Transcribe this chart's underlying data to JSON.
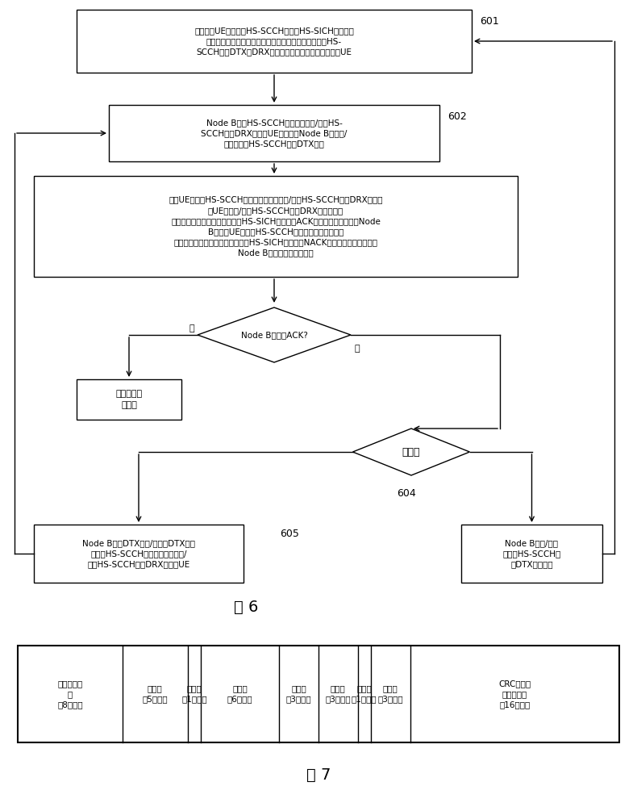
{
  "background_color": "#ffffff",
  "fig6_label": "图 6",
  "fig7_label": "图 7",
  "box601_text": "网络侧为UE初始分配HS-SCCH信道和HS-SICH信道资源\n用作资源分配控制信道和信息反馈控制信道，配置进行HS-\nSCCH信道DTX和DRX的周期，并通过高层信令发送给UE",
  "box601_label": "601",
  "box602_text": "Node B通过HS-SCCH信道发送进入/退出HS-\nSCCH信道DRX命令给UE，同时，Node B进入到/\n退出对应的HS-SCCH信道DTX状态",
  "box602_label": "602",
  "box603_text": "如果UE接收到HS-SCCH信道并正确收到进入/退出HS-SCCH信道DRX命令，\n则UE进入到/退出HS-SCCH信道DRX接收状态，\n并且在预定时间后，通过对应的HS-SICH信道发送ACK（确认）反馈信息给Node\nB；如果UE接收到HS-SCCH信道但收到的是错误的\n命令，则在预定时间后通过对应的HS-SICH信道发送NACK（非确认）反馈信息给\nNode B或者不反馈任何信息",
  "diamond_ack_text": "Node B接收到ACK?",
  "yes_label": "是",
  "no_label": "否",
  "box_end_text": "命令发送过\n程结束",
  "diamond2_text": "二选一",
  "diamond604_label": "604",
  "box605_text": "Node B采用DTX方式/在退出DTX状态\n下通过HS-SCCH信道重新发送进入/\n退出HS-SCCH信道DRX命令给UE",
  "box605_label": "605",
  "box606_text": "Node B退出/重新\n进入到HS-SCCH信\n道DTX发射模式",
  "table_headers": [
    "特殊信息字\n段\n（8比特）",
    "保留位\n（5比特）",
    "保留位\n（1比特）",
    "保留位\n（6比特）",
    "保留位\n（3比特）",
    "保留位\n（3比特）",
    "保留位\n（1比特）",
    "保留位\n（3比特）",
    "CRC（循环\n冕余校验）\n（16比特）"
  ]
}
